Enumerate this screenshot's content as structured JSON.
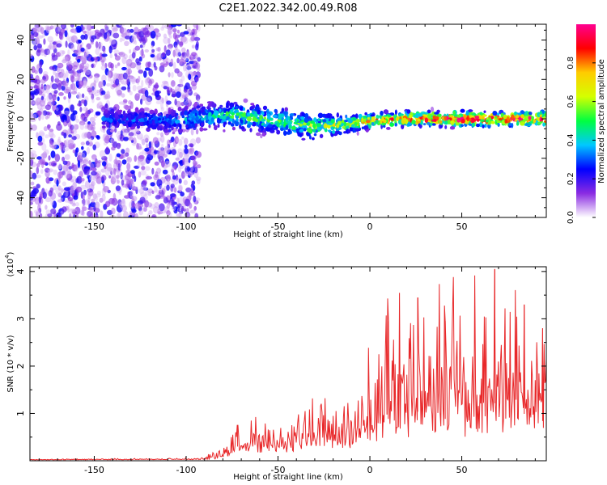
{
  "figure_title": "C2E1.2022.342.00.49.R08",
  "chart_data": [
    {
      "type": "heatmap",
      "name": "spectrogram",
      "xlabel": "Height of straight line (km)",
      "ylabel": "Frequency (Hz)",
      "xlim": [
        -185,
        96
      ],
      "ylim": [
        -50,
        48
      ],
      "x_ticks": [
        -150,
        -100,
        -50,
        0,
        50
      ],
      "x_tick_labels": [
        "-150",
        "-100",
        "-50",
        "0",
        "50"
      ],
      "y_ticks": [
        -40,
        -20,
        0,
        20,
        40
      ],
      "y_tick_labels": [
        "-40",
        "-20",
        "0",
        "20",
        "40"
      ],
      "noise_region_x": [
        -185,
        -93
      ],
      "signal_band": [
        {
          "x": -140,
          "center": 0,
          "width": 5,
          "amp": 0.2
        },
        {
          "x": -110,
          "center": -1,
          "width": 6,
          "amp": 0.22
        },
        {
          "x": -90,
          "center": 1,
          "width": 7,
          "amp": 0.3
        },
        {
          "x": -75,
          "center": 2,
          "width": 7,
          "amp": 0.38
        },
        {
          "x": -60,
          "center": 0,
          "width": 7,
          "amp": 0.4
        },
        {
          "x": -45,
          "center": -2,
          "width": 7,
          "amp": 0.42
        },
        {
          "x": -30,
          "center": -4,
          "width": 7,
          "amp": 0.45
        },
        {
          "x": -15,
          "center": -3,
          "width": 5,
          "amp": 0.5
        },
        {
          "x": 0,
          "center": -1,
          "width": 4,
          "amp": 0.6
        },
        {
          "x": 20,
          "center": 0,
          "width": 4,
          "amp": 0.7
        },
        {
          "x": 50,
          "center": 0,
          "width": 4,
          "amp": 0.8
        },
        {
          "x": 95,
          "center": 0,
          "width": 4,
          "amp": 0.75
        }
      ],
      "colorbar": {
        "label": "Normalized spectral amplitude",
        "range": [
          0,
          1
        ],
        "ticks": [
          0.0,
          0.2,
          0.4,
          0.6,
          0.8
        ],
        "tick_labels": [
          "0.0",
          "0.2",
          "0.4",
          "0.6",
          "0.8"
        ],
        "colors": [
          "#ffffff",
          "#8a2be2",
          "#0000ff",
          "#00c8ff",
          "#00ff40",
          "#d4ff00",
          "#ffcc00",
          "#ff0000",
          "#ff0090"
        ]
      }
    },
    {
      "type": "line",
      "name": "snr",
      "xlabel": "Height of straight line (km)",
      "ylabel": "SNR (10 * v/v)",
      "multiplier_label": "(x10",
      "multiplier_exponent": "4",
      "multiplier_close": ")",
      "xlim": [
        -185,
        96
      ],
      "ylim": [
        0,
        4.1
      ],
      "x_ticks": [
        -150,
        -100,
        -50,
        0,
        50
      ],
      "x_tick_labels": [
        "-150",
        "-100",
        "-50",
        "0",
        "50"
      ],
      "y_ticks": [
        1,
        2,
        3,
        4
      ],
      "y_tick_labels": [
        "1",
        "2",
        "3",
        "4"
      ],
      "line_color": "#e8282a",
      "envelope": [
        {
          "x": -185,
          "base": 0.02,
          "amp": 0.01
        },
        {
          "x": -90,
          "base": 0.03,
          "amp": 0.02
        },
        {
          "x": -80,
          "base": 0.1,
          "amp": 0.2
        },
        {
          "x": -70,
          "base": 0.25,
          "amp": 0.35
        },
        {
          "x": -50,
          "base": 0.3,
          "amp": 0.45
        },
        {
          "x": -30,
          "base": 0.4,
          "amp": 0.6
        },
        {
          "x": -10,
          "base": 0.5,
          "amp": 0.8
        },
        {
          "x": 10,
          "base": 0.9,
          "amp": 1.5
        },
        {
          "x": 30,
          "base": 1.0,
          "amp": 1.8
        },
        {
          "x": 60,
          "base": 1.1,
          "amp": 1.9
        },
        {
          "x": 96,
          "base": 1.1,
          "amp": 1.6
        }
      ],
      "peaks": [
        {
          "x": -72,
          "y": 0.75
        },
        {
          "x": 10,
          "y": 2.95
        },
        {
          "x": 26,
          "y": 3.45
        },
        {
          "x": 41,
          "y": 2.95
        },
        {
          "x": 68,
          "y": 4.05
        },
        {
          "x": 84,
          "y": 3.3
        },
        {
          "x": 94,
          "y": 2.8
        }
      ]
    }
  ]
}
